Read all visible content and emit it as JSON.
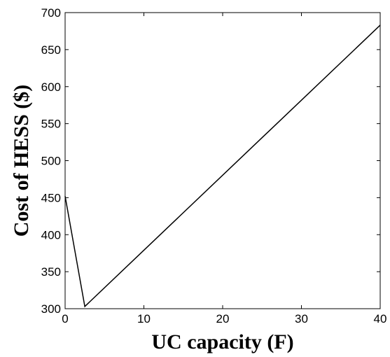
{
  "chart_data": {
    "type": "line",
    "title": "",
    "xlabel": "UC capacity (F)",
    "ylabel": "Cost of HESS ($)",
    "xlim": [
      0,
      40
    ],
    "ylim": [
      300,
      700
    ],
    "xticks": [
      0,
      10,
      20,
      30,
      40
    ],
    "yticks": [
      300,
      350,
      400,
      450,
      500,
      550,
      600,
      650,
      700
    ],
    "grid": false,
    "series": [
      {
        "color": "#000000",
        "x": [
          0,
          2.5,
          40
        ],
        "y": [
          452,
          303,
          683
        ]
      }
    ]
  }
}
